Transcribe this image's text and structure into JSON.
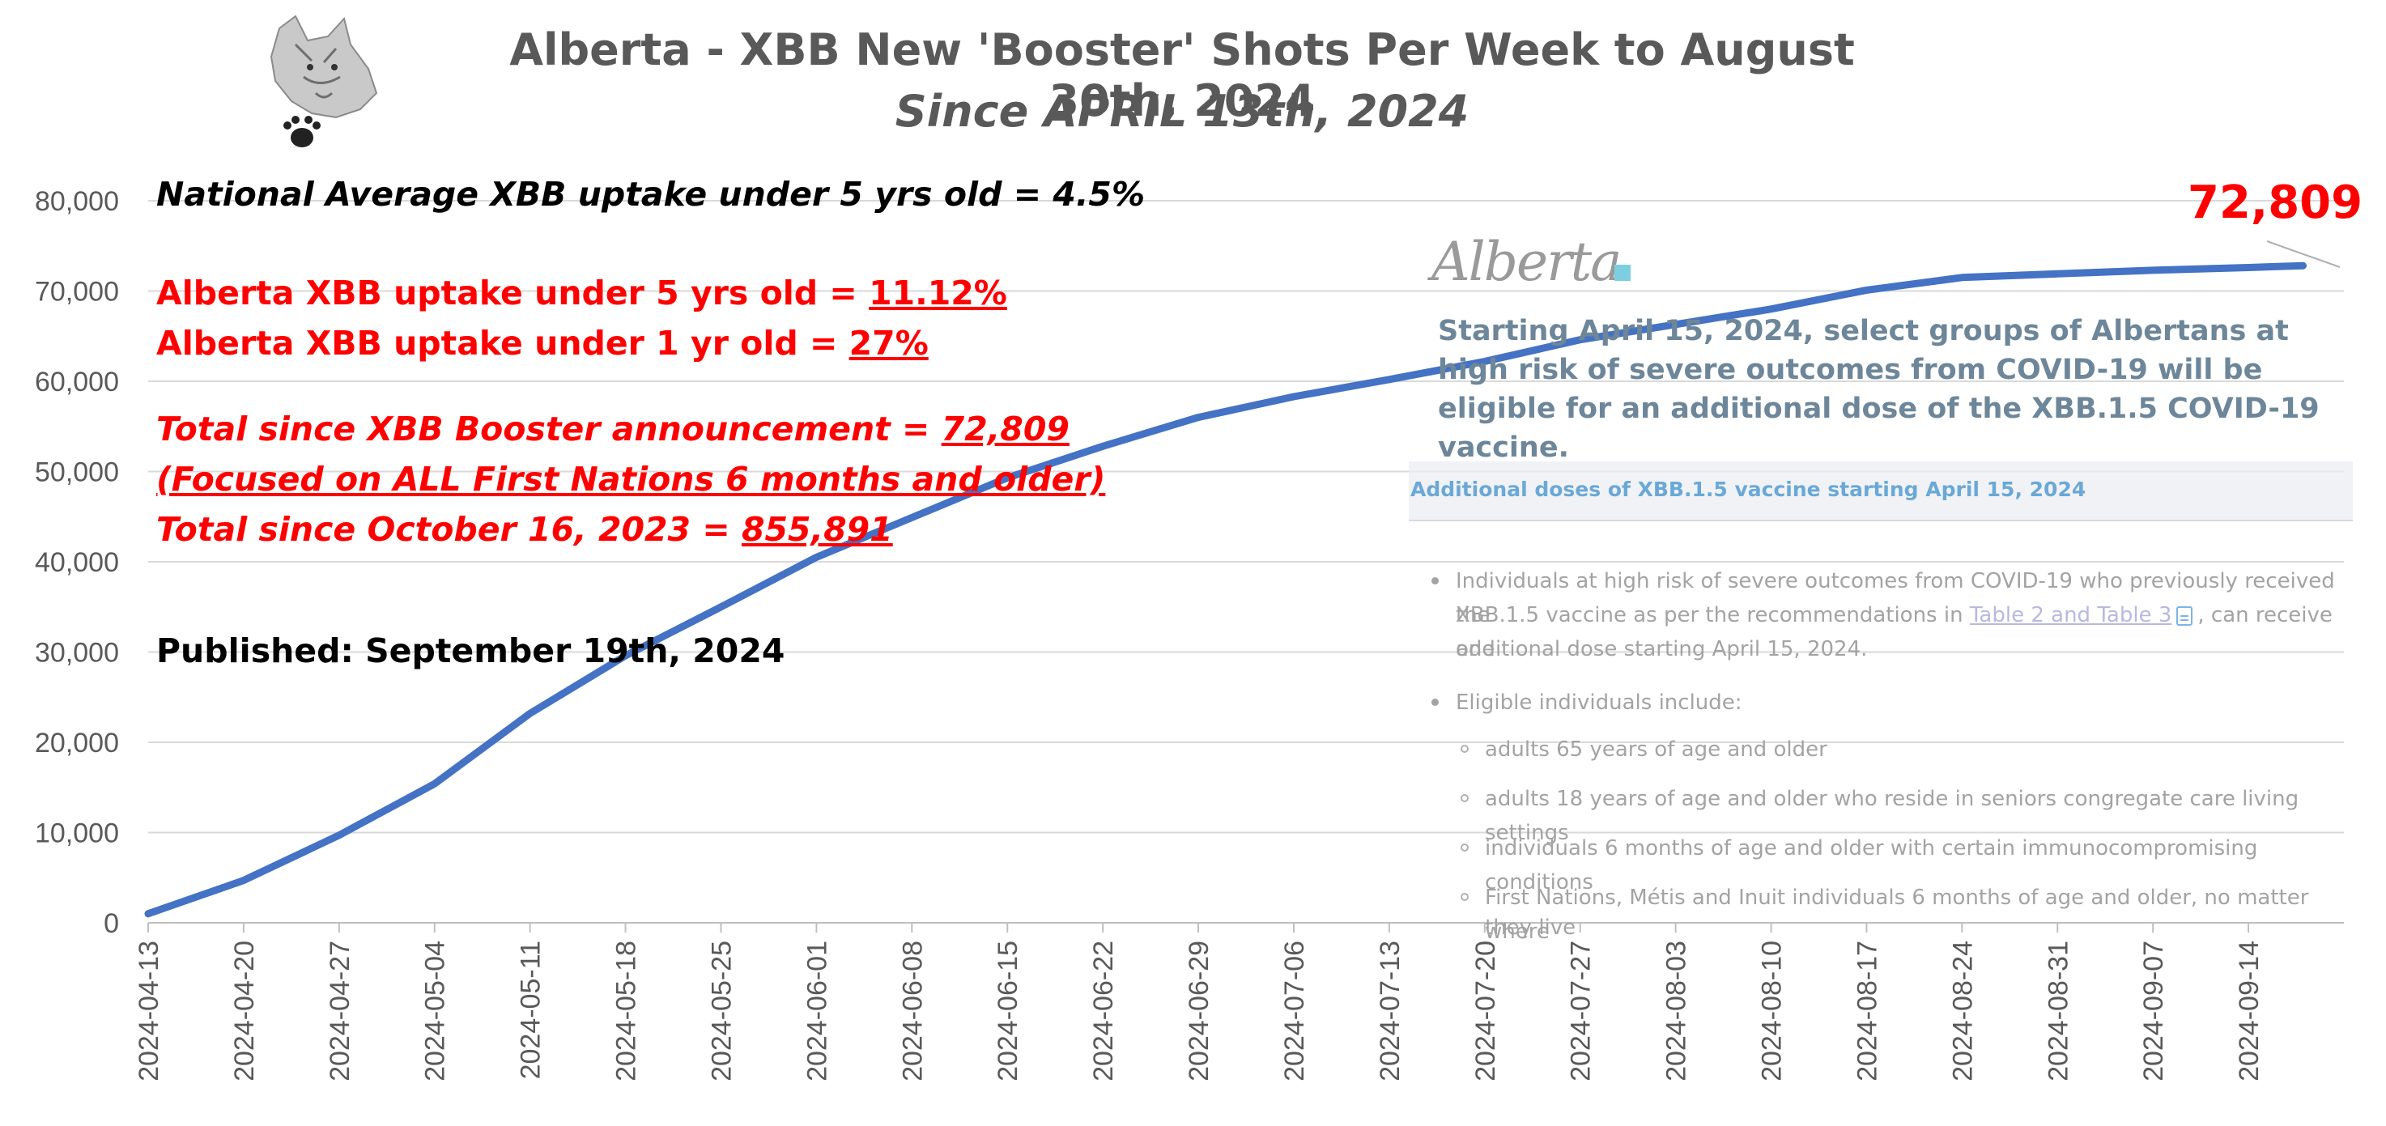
{
  "title": "Alberta - XBB New 'Booster' Shots Per Week to August 30th, 2024",
  "subtitle": "Since APRIL 13th, 2024",
  "annotations": {
    "national": "National Average XBB uptake under 5 yrs old = 4.5%",
    "ab_under5_label": "Alberta XBB uptake under 5 yrs old = ",
    "ab_under5_value": "11.12%",
    "ab_under1_label": "Alberta XBB uptake under 1 yr old = ",
    "ab_under1_value": "27%",
    "total_booster_label": "Total since XBB Booster announcement = ",
    "total_booster_value": "72,809",
    "focused": "(Focused on ALL First Nations 6 months and older)",
    "total_oct_label": "Total since October 16, 2023 = ",
    "total_oct_value": "855,891",
    "published": "Published: September 19th, 2024"
  },
  "callout": "72,809",
  "overlay": {
    "logo_text": "Alberta",
    "notice": "Starting April 15, 2024, select groups of Albertans at high risk of severe outcomes from COVID-19 will be eligible for an additional dose of the XBB.1.5 COVID-19 vaccine.",
    "section_title": "Additional doses of XBB.1.5 vaccine starting April 15, 2024",
    "bullet1_a": "Individuals at high risk of severe outcomes from COVID-19 who previously received the",
    "bullet1_b": "XBB.1.5 vaccine as per the recommendations in ",
    "bullet1_link": "Table 2 and Table 3",
    "bullet1_c": ", can receive one",
    "bullet1_d": "additional dose starting April 15, 2024.",
    "bullet2": "Eligible individuals include:",
    "sub1": "adults 65 years of age and older",
    "sub2": "adults 18 years of age and older who reside in seniors congregate care living settings",
    "sub3": "individuals 6 months of age and older with certain immunocompromising conditions",
    "sub4_a": "First Nations, Métis and Inuit individuals 6 months of age and older, no matter where",
    "sub4_b": "they live"
  },
  "chart_data": {
    "type": "line",
    "title": "Alberta - XBB New 'Booster' Shots Per Week to August 30th, 2024",
    "subtitle": "Since APRIL 13th, 2024",
    "xlabel": "",
    "ylabel": "",
    "ylim": [
      0,
      80000
    ],
    "yticks": [
      0,
      10000,
      20000,
      30000,
      40000,
      50000,
      60000,
      70000,
      80000
    ],
    "ytick_labels": [
      "0",
      "10,000",
      "20,000",
      "30,000",
      "40,000",
      "50,000",
      "60,000",
      "70,000",
      "80,000"
    ],
    "x": [
      "2024-04-13",
      "2024-04-20",
      "2024-04-27",
      "2024-05-04",
      "2024-05-11",
      "2024-05-18",
      "2024-05-25",
      "2024-06-01",
      "2024-06-08",
      "2024-06-15",
      "2024-06-22",
      "2024-06-29",
      "2024-07-06",
      "2024-07-13",
      "2024-07-20",
      "2024-07-27",
      "2024-08-03",
      "2024-08-10",
      "2024-08-17",
      "2024-08-24",
      "2024-08-31",
      "2024-09-07",
      "2024-09-14"
    ],
    "grid": true,
    "legend": "none",
    "color": "#4472c4",
    "series": [
      {
        "x": [
          "2024-04-13",
          "2024-04-20",
          "2024-04-27",
          "2024-05-04",
          "2024-05-11",
          "2024-05-18",
          "2024-05-25",
          "2024-06-01",
          "2024-06-08",
          "2024-06-15",
          "2024-06-22",
          "2024-06-29",
          "2024-07-06",
          "2024-07-13",
          "2024-07-20",
          "2024-07-27",
          "2024-08-03",
          "2024-08-10",
          "2024-08-17",
          "2024-08-24",
          "2024-08-31",
          "2024-09-07",
          "2024-09-14",
          "2024-09-18"
        ],
        "values": [
          1000,
          4700,
          9700,
          15400,
          23200,
          29600,
          35000,
          40500,
          44900,
          49300,
          52800,
          56000,
          58300,
          60200,
          62200,
          64600,
          66300,
          68000,
          70100,
          71500,
          71900,
          72300,
          72600,
          72809
        ]
      }
    ]
  }
}
